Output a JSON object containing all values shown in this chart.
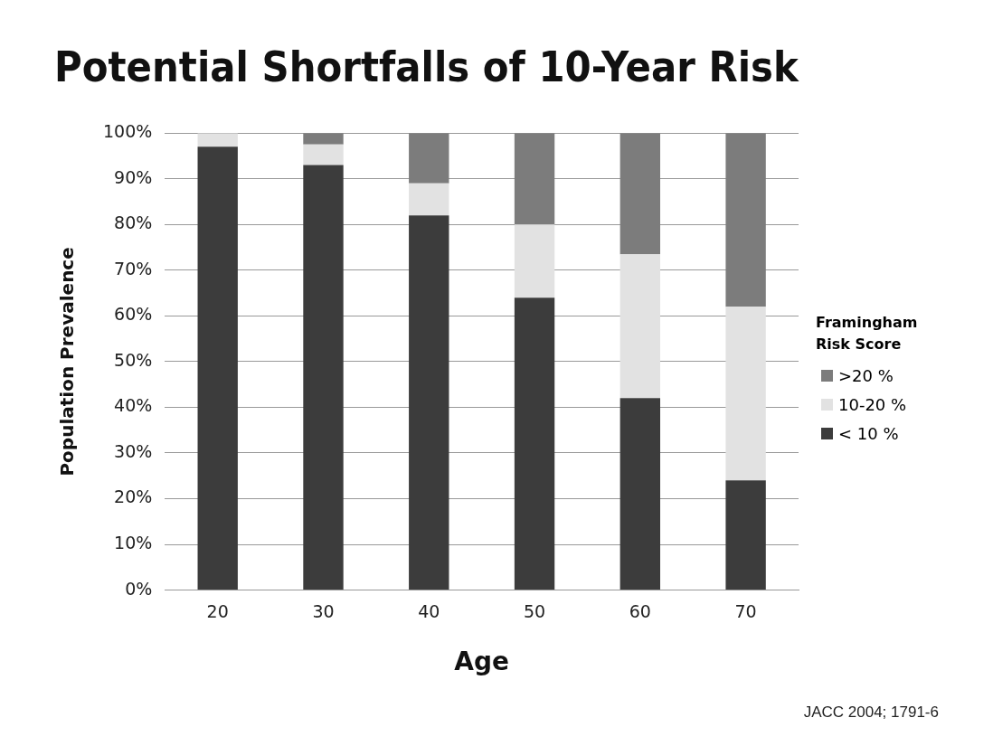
{
  "chart_data": {
    "type": "bar",
    "stacked": true,
    "title": "Potential Shortfalls of 10-Year Risk",
    "xlabel": "Age",
    "ylabel": "Population Prevalence",
    "legend_title": "Framingham Risk Score",
    "categories": [
      "20",
      "30",
      "40",
      "50",
      "60",
      "70"
    ],
    "series": [
      {
        "name": "< 10 %",
        "color": "#3c3c3c",
        "values": [
          97,
          93,
          82,
          64,
          42,
          24
        ]
      },
      {
        "name": "10-20 %",
        "color": "#e2e2e2",
        "values": [
          3,
          4.5,
          7,
          16,
          31.5,
          38
        ]
      },
      {
        "name": ">20 %",
        "color": "#7c7c7c",
        "values": [
          0,
          2.5,
          11,
          20,
          26.5,
          38
        ]
      }
    ],
    "ylim": [
      0,
      100
    ],
    "yticks": [
      {
        "value": 0,
        "label": "0%"
      },
      {
        "value": 10,
        "label": "10%"
      },
      {
        "value": 20,
        "label": "20%"
      },
      {
        "value": 30,
        "label": "30%"
      },
      {
        "value": 40,
        "label": "40%"
      },
      {
        "value": 50,
        "label": "50%"
      },
      {
        "value": 60,
        "label": "60%"
      },
      {
        "value": 70,
        "label": "70%"
      },
      {
        "value": 80,
        "label": "80%"
      },
      {
        "value": 90,
        "label": "90%"
      },
      {
        "value": 100,
        "label": "100%"
      }
    ],
    "grid": "y",
    "legend": "right",
    "annotations": [
      "JACC 2004; 1791-6"
    ]
  }
}
